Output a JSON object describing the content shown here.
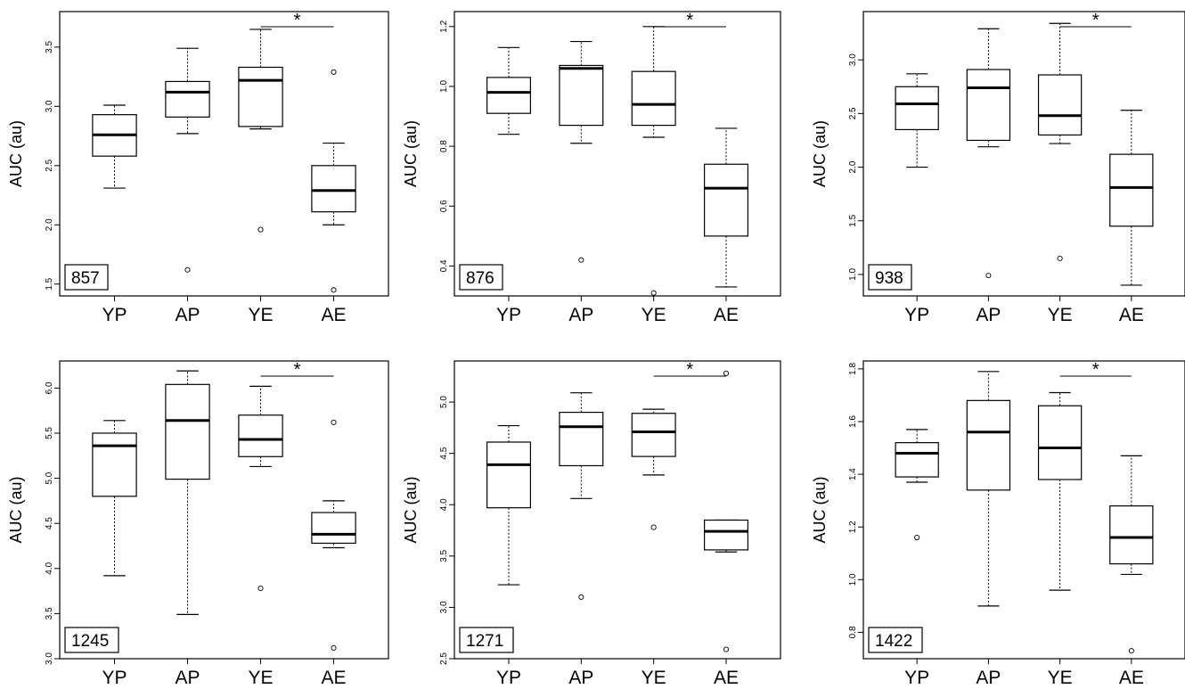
{
  "chart_data": [
    {
      "type": "boxplot",
      "panel_label": "857",
      "ylabel": "AUC (au)",
      "ylim": [
        1.4,
        3.8
      ],
      "yticks": [
        "1.5",
        "2.0",
        "2.5",
        "3.0",
        "3.5"
      ],
      "categories": [
        "YP",
        "AP",
        "YE",
        "AE"
      ],
      "boxes": [
        {
          "category": "YP",
          "whisker_low": 2.31,
          "q1": 2.58,
          "median": 2.76,
          "q3": 2.93,
          "whisker_high": 3.01,
          "outliers": []
        },
        {
          "category": "AP",
          "whisker_low": 2.77,
          "q1": 2.91,
          "median": 3.12,
          "q3": 3.21,
          "whisker_high": 3.49,
          "outliers": [
            1.62
          ]
        },
        {
          "category": "YE",
          "whisker_low": 2.81,
          "q1": 2.83,
          "median": 3.22,
          "q3": 3.33,
          "whisker_high": 3.65,
          "outliers": [
            1.96
          ]
        },
        {
          "category": "AE",
          "whisker_low": 2.0,
          "q1": 2.11,
          "median": 2.29,
          "q3": 2.5,
          "whisker_high": 2.69,
          "outliers": [
            3.29,
            1.45
          ]
        }
      ],
      "significance": {
        "from": "YE",
        "to": "AE",
        "label": "*"
      }
    },
    {
      "type": "boxplot",
      "panel_label": "876",
      "ylabel": "AUC (au)",
      "ylim": [
        0.3,
        1.25
      ],
      "yticks": [
        "0.4",
        "0.6",
        "0.8",
        "1.0",
        "1.2"
      ],
      "categories": [
        "YP",
        "AP",
        "YE",
        "AE"
      ],
      "boxes": [
        {
          "category": "YP",
          "whisker_low": 0.84,
          "q1": 0.91,
          "median": 0.98,
          "q3": 1.03,
          "whisker_high": 1.13,
          "outliers": []
        },
        {
          "category": "AP",
          "whisker_low": 0.81,
          "q1": 0.87,
          "median": 1.06,
          "q3": 1.07,
          "whisker_high": 1.15,
          "outliers": [
            0.42
          ]
        },
        {
          "category": "YE",
          "whisker_low": 0.83,
          "q1": 0.87,
          "median": 0.94,
          "q3": 1.05,
          "whisker_high": 1.2,
          "outliers": [
            0.31
          ]
        },
        {
          "category": "AE",
          "whisker_low": 0.33,
          "q1": 0.5,
          "median": 0.66,
          "q3": 0.74,
          "whisker_high": 0.86,
          "outliers": []
        }
      ],
      "significance": {
        "from": "YE",
        "to": "AE",
        "label": "*"
      }
    },
    {
      "type": "boxplot",
      "panel_label": "938",
      "ylabel": "AUC (au)",
      "ylim": [
        0.8,
        3.45
      ],
      "yticks": [
        "1.0",
        "1.5",
        "2.0",
        "2.5",
        "3.0"
      ],
      "categories": [
        "YP",
        "AP",
        "YE",
        "AE"
      ],
      "boxes": [
        {
          "category": "YP",
          "whisker_low": 2.0,
          "q1": 2.35,
          "median": 2.59,
          "q3": 2.75,
          "whisker_high": 2.87,
          "outliers": []
        },
        {
          "category": "AP",
          "whisker_low": 2.19,
          "q1": 2.25,
          "median": 2.74,
          "q3": 2.91,
          "whisker_high": 3.29,
          "outliers": [
            0.99
          ]
        },
        {
          "category": "YE",
          "whisker_low": 2.22,
          "q1": 2.3,
          "median": 2.48,
          "q3": 2.86,
          "whisker_high": 3.34,
          "outliers": [
            1.15
          ]
        },
        {
          "category": "AE",
          "whisker_low": 0.9,
          "q1": 1.45,
          "median": 1.81,
          "q3": 2.12,
          "whisker_high": 2.53,
          "outliers": []
        }
      ],
      "significance": {
        "from": "YE",
        "to": "AE",
        "label": "*"
      }
    },
    {
      "type": "boxplot",
      "panel_label": "1245",
      "ylabel": "AUC (au)",
      "ylim": [
        3.0,
        6.3
      ],
      "yticks": [
        "3.0",
        "3.5",
        "4.0",
        "4.5",
        "5.0",
        "5.5",
        "6.0"
      ],
      "categories": [
        "YP",
        "AP",
        "YE",
        "AE"
      ],
      "boxes": [
        {
          "category": "YP",
          "whisker_low": 3.92,
          "q1": 4.8,
          "median": 5.36,
          "q3": 5.5,
          "whisker_high": 5.64,
          "outliers": []
        },
        {
          "category": "AP",
          "whisker_low": 3.49,
          "q1": 4.99,
          "median": 5.64,
          "q3": 6.04,
          "whisker_high": 6.19,
          "outliers": []
        },
        {
          "category": "YE",
          "whisker_low": 5.13,
          "q1": 5.24,
          "median": 5.43,
          "q3": 5.7,
          "whisker_high": 6.02,
          "outliers": [
            3.78
          ]
        },
        {
          "category": "AE",
          "whisker_low": 4.23,
          "q1": 4.28,
          "median": 4.38,
          "q3": 4.62,
          "whisker_high": 4.75,
          "outliers": [
            5.62,
            3.12
          ]
        }
      ],
      "significance": {
        "from": "YE",
        "to": "AE",
        "label": "*"
      }
    },
    {
      "type": "boxplot",
      "panel_label": "1271",
      "ylabel": "AUC (au)",
      "ylim": [
        2.5,
        5.4
      ],
      "yticks": [
        "2.5",
        "3.0",
        "3.5",
        "4.0",
        "4.5",
        "5.0"
      ],
      "categories": [
        "YP",
        "AP",
        "YE",
        "AE"
      ],
      "boxes": [
        {
          "category": "YP",
          "whisker_low": 3.22,
          "q1": 3.97,
          "median": 4.39,
          "q3": 4.61,
          "whisker_high": 4.77,
          "outliers": []
        },
        {
          "category": "AP",
          "whisker_low": 4.06,
          "q1": 4.38,
          "median": 4.76,
          "q3": 4.9,
          "whisker_high": 5.09,
          "outliers": [
            3.1
          ]
        },
        {
          "category": "YE",
          "whisker_low": 4.29,
          "q1": 4.47,
          "median": 4.71,
          "q3": 4.89,
          "whisker_high": 4.93,
          "outliers": [
            3.78
          ]
        },
        {
          "category": "AE",
          "whisker_low": 3.54,
          "q1": 3.56,
          "median": 3.74,
          "q3": 3.85,
          "whisker_high": 3.85,
          "outliers": [
            5.28,
            2.59
          ]
        }
      ],
      "significance": {
        "from": "YE",
        "to": "AE",
        "label": "*"
      }
    },
    {
      "type": "boxplot",
      "panel_label": "1422",
      "ylabel": "AUC (au)",
      "ylim": [
        0.7,
        1.83
      ],
      "yticks": [
        "0.8",
        "1.0",
        "1.2",
        "1.4",
        "1.6",
        "1.8"
      ],
      "categories": [
        "YP",
        "AP",
        "YE",
        "AE"
      ],
      "boxes": [
        {
          "category": "YP",
          "whisker_low": 1.37,
          "q1": 1.39,
          "median": 1.48,
          "q3": 1.52,
          "whisker_high": 1.57,
          "outliers": [
            1.16
          ]
        },
        {
          "category": "AP",
          "whisker_low": 0.9,
          "q1": 1.34,
          "median": 1.56,
          "q3": 1.68,
          "whisker_high": 1.79,
          "outliers": []
        },
        {
          "category": "YE",
          "whisker_low": 0.96,
          "q1": 1.38,
          "median": 1.5,
          "q3": 1.66,
          "whisker_high": 1.71,
          "outliers": []
        },
        {
          "category": "AE",
          "whisker_low": 1.02,
          "q1": 1.06,
          "median": 1.16,
          "q3": 1.28,
          "whisker_high": 1.47,
          "outliers": [
            0.73
          ]
        }
      ],
      "significance": {
        "from": "YE",
        "to": "AE",
        "label": "*"
      }
    }
  ]
}
